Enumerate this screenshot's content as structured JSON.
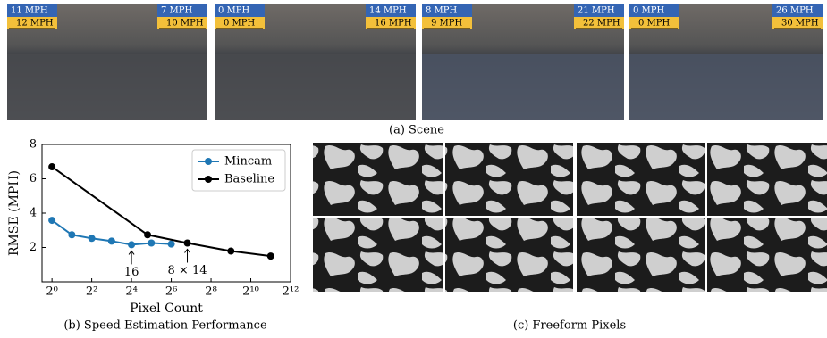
{
  "scenes": [
    [
      "11 MPH",
      "12 MPH",
      "7 MPH",
      "10 MPH"
    ],
    [
      "0 MPH",
      "0 MPH",
      "14 MPH",
      "16 MPH"
    ],
    [
      "8 MPH",
      "9 MPH",
      "21 MPH",
      "22 MPH"
    ],
    [
      "0 MPH",
      "0 MPH",
      "26 MPH",
      "30 MPH"
    ]
  ],
  "captions": {
    "a": "(a) Scene",
    "b": "(b) Speed Estimation Performance",
    "c": "(c) Freeform Pixels"
  },
  "chart_data": {
    "type": "line",
    "x_label": "Pixel Count",
    "y_label": "RMSE (MPH)",
    "log_x": 2,
    "xlim": [
      0.707,
      4096
    ],
    "xticks": [
      {
        "value": 1,
        "label": "2⁰"
      },
      {
        "value": 4,
        "label": "2²"
      },
      {
        "value": 16,
        "label": "2⁴"
      },
      {
        "value": 64,
        "label": "2⁶"
      },
      {
        "value": 256,
        "label": "2⁸"
      },
      {
        "value": 1024,
        "label": "2¹⁰"
      },
      {
        "value": 4096,
        "label": "2¹²"
      }
    ],
    "ylim": [
      0,
      8
    ],
    "yticks": [
      2,
      4,
      6,
      8
    ],
    "legend": "upper right",
    "series": [
      {
        "name": "Mincam",
        "color": "#1f77b4",
        "x": [
          1,
          2,
          4,
          8,
          16,
          32,
          64
        ],
        "values": [
          3.58,
          2.74,
          2.53,
          2.37,
          2.16,
          2.26,
          2.2
        ]
      },
      {
        "name": "Baseline",
        "color": "#000000",
        "x": [
          1,
          28,
          112,
          512,
          2048
        ],
        "values": [
          6.7,
          2.74,
          2.26,
          1.79,
          1.5
        ]
      }
    ],
    "annotations": [
      "16",
      "8 × 14"
    ]
  }
}
